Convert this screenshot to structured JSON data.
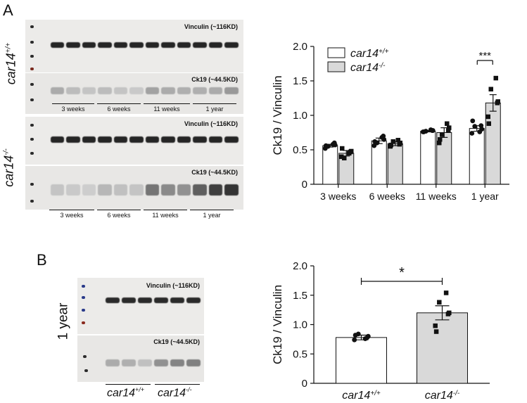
{
  "panel_a": {
    "letter": "A",
    "genotype_top_base": "car14",
    "genotype_top_sup": "+/+",
    "genotype_bottom_base": "car14",
    "genotype_bottom_sup": "-/-",
    "blots": [
      {
        "label": "Vinculin (~116KD)"
      },
      {
        "label": "Ck19 (~44.5KD)"
      },
      {
        "label": "Vinculin (~116KD)"
      },
      {
        "label": "Ck19 (~44.5KD)"
      }
    ],
    "timepoints": [
      "3 weeks",
      "6 weeks",
      "11 weeks",
      "1 year"
    ],
    "band_intensity": {
      "ck19_wt": [
        0.3,
        0.22,
        0.18,
        0.22,
        0.18,
        0.16,
        0.34,
        0.3,
        0.28,
        0.28,
        0.3,
        0.38
      ],
      "ck19_ko": [
        0.18,
        0.16,
        0.14,
        0.24,
        0.2,
        0.18,
        0.55,
        0.45,
        0.42,
        0.65,
        0.8,
        0.85
      ]
    }
  },
  "panel_b": {
    "letter": "B",
    "side_label": "1 year",
    "blots": [
      {
        "label": "Vinculin (~116KD)"
      },
      {
        "label": "Ck19 (~44.5KD)"
      }
    ],
    "genotype_wt_base": "car14",
    "genotype_wt_sup": "+/+",
    "genotype_ko_base": "car14",
    "genotype_ko_sup": "-/-",
    "band_intensity": {
      "ck19": [
        0.3,
        0.28,
        0.2,
        0.42,
        0.48,
        0.5
      ]
    }
  },
  "chart_data": [
    {
      "type": "bar",
      "title": "",
      "xlabel": "",
      "ylabel": "Ck19 / Vinculin",
      "ylim": [
        0,
        2.0
      ],
      "yticks": [
        "0",
        "0.5",
        "1.0",
        "1.5",
        "2.0"
      ],
      "categories": [
        "3 weeks",
        "6 weeks",
        "11 weeks",
        "1 year"
      ],
      "legend": {
        "placement": "top-left"
      },
      "series": [
        {
          "name": "car14",
          "name_sup": "+/+",
          "fill": "#ffffff",
          "values": [
            0.56,
            0.63,
            0.77,
            0.81
          ],
          "sem": [
            0.02,
            0.04,
            0.01,
            0.04
          ]
        },
        {
          "name": "car14",
          "name_sup": "-/-",
          "fill": "#d9d9d9",
          "values": [
            0.45,
            0.59,
            0.75,
            1.18
          ],
          "sem": [
            0.04,
            0.03,
            0.07,
            0.12
          ]
        }
      ],
      "points": [
        [
          [
            0.52,
            0.57,
            0.55,
            0.58,
            0.56,
            0.6
          ],
          [
            0.4,
            0.48,
            0.38,
            0.45,
            0.52,
            0.47
          ]
        ],
        [
          [
            0.56,
            0.65,
            0.6,
            0.68,
            0.62,
            0.7
          ],
          [
            0.55,
            0.6,
            0.62,
            0.64,
            0.57,
            0.58
          ]
        ],
        [
          [
            0.76,
            0.78,
            0.77,
            0.79,
            0.76,
            0.78
          ],
          [
            0.6,
            0.82,
            0.72,
            0.88,
            0.65,
            0.78
          ]
        ],
        [
          [
            0.74,
            0.8,
            0.84,
            0.76,
            0.92,
            0.85
          ],
          [
            0.98,
            1.2,
            1.38,
            1.54,
            0.88,
            1.18
          ]
        ]
      ],
      "significance": [
        {
          "category": "1 year",
          "label": "***"
        }
      ]
    },
    {
      "type": "bar",
      "title": "",
      "xlabel": "",
      "ylabel": "Ck19 / Vinculin",
      "ylim": [
        0,
        2.0
      ],
      "yticks": [
        "0",
        "0.5",
        "1.0",
        "1.5",
        "2.0"
      ],
      "categories": [
        {
          "base": "car14",
          "sup": "+/+"
        },
        {
          "base": "car14",
          "sup": "-/-"
        }
      ],
      "fills": [
        "#ffffff",
        "#d9d9d9"
      ],
      "values": [
        0.78,
        1.2
      ],
      "sem": [
        0.04,
        0.12
      ],
      "points": [
        [
          0.74,
          0.8,
          0.84,
          0.76,
          0.82,
          0.78
        ],
        [
          0.98,
          1.2,
          1.38,
          1.54,
          0.88,
          1.18
        ]
      ],
      "significance": {
        "label": "*"
      }
    }
  ]
}
